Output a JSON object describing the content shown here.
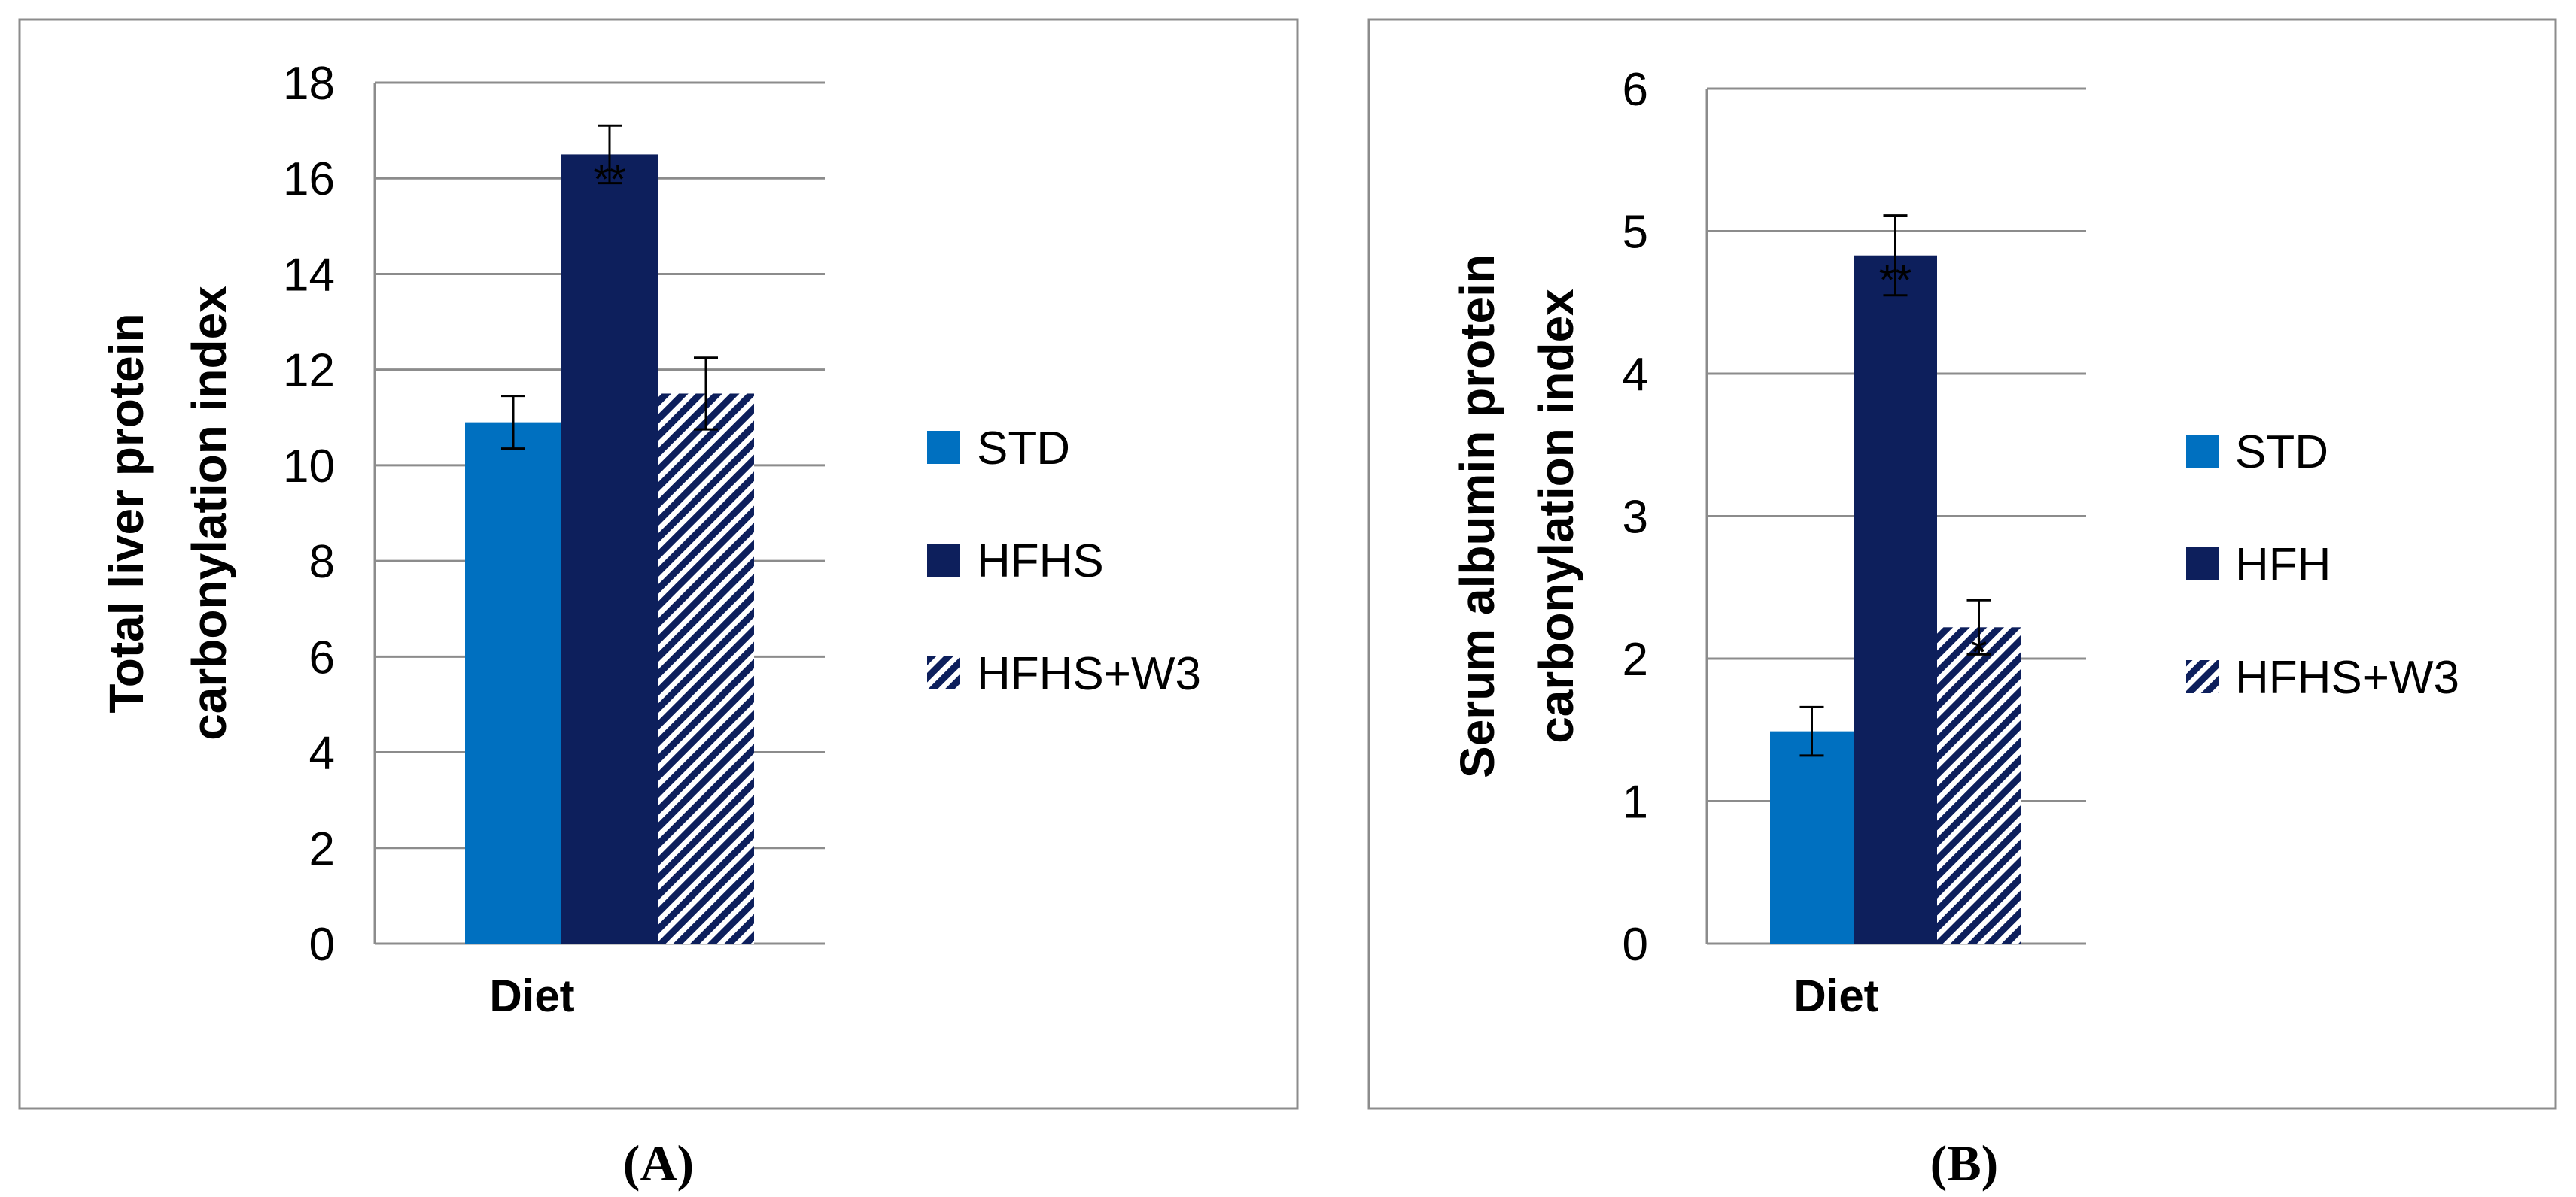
{
  "chart_data": [
    {
      "type": "bar",
      "panel_label": "(A)",
      "title": "",
      "xlabel": "Diet",
      "ylabel_lines": [
        "Total liver protein",
        "carbonylation index"
      ],
      "ylim": [
        0,
        18
      ],
      "yticks": [
        0,
        2,
        4,
        6,
        8,
        10,
        12,
        14,
        16,
        18
      ],
      "categories": [
        "Diet"
      ],
      "grid": true,
      "legend_position": "right",
      "series": [
        {
          "name": "STD",
          "values": [
            10.9
          ],
          "error": [
            0.55
          ],
          "annotation": "",
          "color": "#0070C0",
          "pattern": "solid"
        },
        {
          "name": "HFHS",
          "values": [
            16.5
          ],
          "error": [
            0.6
          ],
          "annotation": "**",
          "color": "#0D1F5C",
          "pattern": "solid"
        },
        {
          "name": "HFHS+W3",
          "values": [
            11.5
          ],
          "error": [
            0.75
          ],
          "annotation": "",
          "color": "#0D1F5C",
          "pattern": "diagonal-stripes"
        }
      ]
    },
    {
      "type": "bar",
      "panel_label": "(B)",
      "title": "",
      "xlabel": "Diet",
      "ylabel_lines": [
        "Serum albumin protein",
        "carbonylation index"
      ],
      "ylim": [
        0,
        6
      ],
      "yticks": [
        0,
        1,
        2,
        3,
        4,
        5,
        6
      ],
      "categories": [
        "Diet"
      ],
      "grid": true,
      "legend_position": "right",
      "series": [
        {
          "name": "STD",
          "values": [
            1.49
          ],
          "error": [
            0.17
          ],
          "annotation": "",
          "color": "#0070C0",
          "pattern": "solid"
        },
        {
          "name": "HFH",
          "values": [
            4.83
          ],
          "error": [
            0.28
          ],
          "annotation": "**",
          "color": "#0D1F5C",
          "pattern": "solid"
        },
        {
          "name": "HFHS+W3",
          "values": [
            2.22
          ],
          "error": [
            0.19
          ],
          "annotation": "*",
          "color": "#0D1F5C",
          "pattern": "diagonal-stripes"
        }
      ]
    }
  ]
}
